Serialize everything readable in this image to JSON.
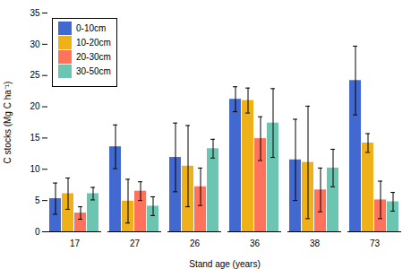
{
  "chart_data": {
    "type": "bar",
    "categories": [
      "17",
      "27",
      "26",
      "36",
      "38",
      "73"
    ],
    "series": [
      {
        "name": "0-10cm",
        "values": [
          5.3,
          13.6,
          11.9,
          21.2,
          11.5,
          24.2
        ],
        "errors": [
          2.5,
          3.5,
          5.5,
          2.0,
          6.5,
          5.5
        ]
      },
      {
        "name": "10-20cm",
        "values": [
          6.1,
          4.9,
          10.5,
          21.0,
          11.1,
          14.2
        ],
        "errors": [
          2.5,
          3.5,
          6.5,
          2.0,
          9.0,
          1.5
        ]
      },
      {
        "name": "20-30cm",
        "values": [
          3.0,
          6.5,
          7.2,
          14.9,
          6.7,
          5.1
        ],
        "errors": [
          1.0,
          1.5,
          3.0,
          3.5,
          3.5,
          3.0
        ]
      },
      {
        "name": "30-50cm",
        "values": [
          6.1,
          4.1,
          13.3,
          17.4,
          10.2,
          4.8
        ],
        "errors": [
          1.0,
          1.5,
          1.5,
          5.5,
          3.0,
          1.5
        ]
      }
    ],
    "xlabel": "Stand age (years)",
    "ylabel": "C stocks (Mg C ha⁻¹)",
    "ylim": [
      0,
      35
    ],
    "yticks": [
      0,
      5,
      10,
      15,
      20,
      25,
      30,
      35
    ],
    "grid": false,
    "legend": "upper left"
  }
}
